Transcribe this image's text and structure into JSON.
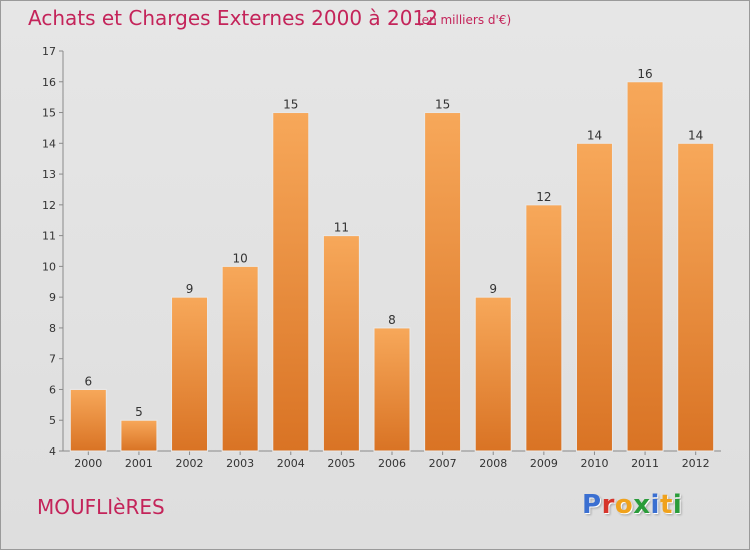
{
  "header": {
    "title": "Achats et Charges Externes 2000 à 2012",
    "subtitle": "(en milliers d'€)"
  },
  "footer": {
    "commune": "MOUFLIèRES",
    "brand": "Proxiti"
  },
  "colors": {
    "title": "#c4245a",
    "bar_light": "#f7a85a",
    "bar_dark": "#d97324",
    "brand_letters": [
      "#3a6fd1",
      "#d6352b",
      "#f0a21c",
      "#2a9c3a",
      "#3a6fd1",
      "#f0a21c",
      "#2a9c3a"
    ]
  },
  "chart_data": {
    "type": "bar",
    "categories": [
      "2000",
      "2001",
      "2002",
      "2003",
      "2004",
      "2005",
      "2006",
      "2007",
      "2008",
      "2009",
      "2010",
      "2011",
      "2012"
    ],
    "values": [
      6,
      5,
      9,
      10,
      15,
      11,
      8,
      15,
      9,
      12,
      14,
      16,
      14
    ],
    "ylim": [
      4,
      17
    ],
    "yticks": [
      4,
      5,
      6,
      7,
      8,
      9,
      10,
      11,
      12,
      13,
      14,
      15,
      16,
      17
    ],
    "grid": false,
    "xlabel": "",
    "ylabel": ""
  }
}
